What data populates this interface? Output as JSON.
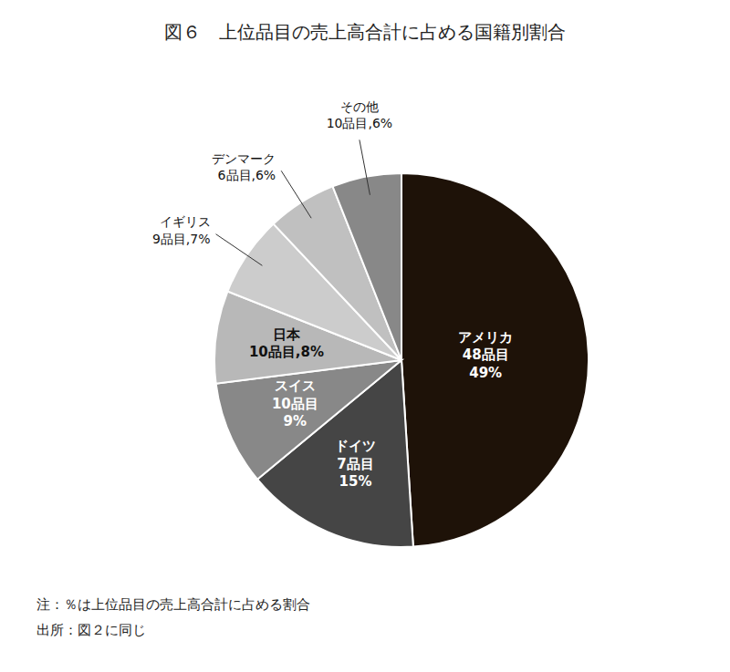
{
  "chart_data": {
    "type": "pie",
    "title": "図６　上位品目の売上高合計に占める国籍別割合",
    "categories": [
      "アメリカ",
      "ドイツ",
      "スイス",
      "日本",
      "イギリス",
      "デンマーク",
      "その他"
    ],
    "values": [
      49,
      15,
      9,
      8,
      7,
      6,
      6
    ],
    "value_labels": [
      "49%",
      "15%",
      "9%",
      "8%",
      "7%",
      "6%",
      "6%"
    ],
    "annotations": [
      "48品目",
      "7品目",
      "10品目",
      "10品目,",
      "9品目,",
      "6品目,",
      "10品目,"
    ],
    "colors": [
      "#1e1208",
      "#454545",
      "#888888",
      "#b8b8b8",
      "#cccccc",
      "#c0c0c0",
      "#888888"
    ],
    "notes": [
      "注：％は上位品目の売上高合計に占める割合",
      "出所：図２に同じ"
    ]
  }
}
